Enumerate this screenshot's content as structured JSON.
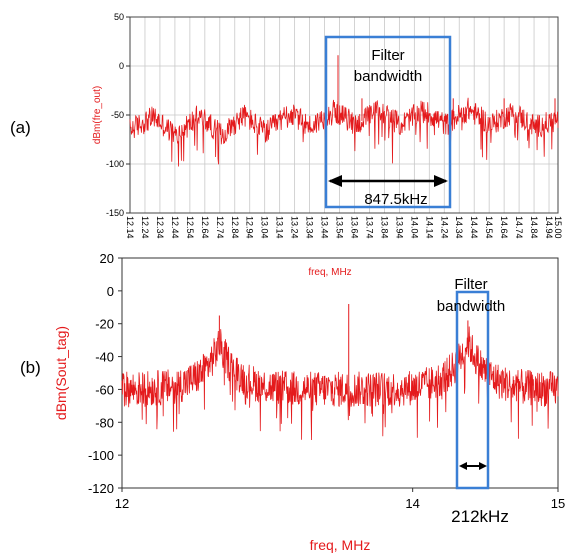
{
  "chart_data": [
    {
      "panel_label": "(a)",
      "type": "line",
      "ylabel": "dBm(fre_out)",
      "xlabel": "",
      "ylim": [
        -150,
        50
      ],
      "yticks": [
        "50",
        "0",
        "-50",
        "-100",
        "-150"
      ],
      "xlim": [
        12.14,
        15.0
      ],
      "xticks": [
        "12.14",
        "12.24",
        "12.34",
        "12.44",
        "12.54",
        "12.64",
        "12.74",
        "12.84",
        "12.94",
        "13.04",
        "13.14",
        "13.24",
        "13.34",
        "13.44",
        "13.54",
        "13.64",
        "13.74",
        "13.84",
        "13.94",
        "14.04",
        "14.14",
        "14.24",
        "14.34",
        "14.44",
        "14.54",
        "14.64",
        "14.74",
        "14.84",
        "14.94",
        "15.00"
      ],
      "grid": true,
      "series": [
        {
          "color": "#e41a1c",
          "description_points": [
            [
              12.14,
              -65
            ],
            [
              12.3,
              -52
            ],
            [
              12.45,
              -72
            ],
            [
              12.6,
              -50
            ],
            [
              12.75,
              -70
            ],
            [
              12.9,
              -50
            ],
            [
              13.05,
              -68
            ],
            [
              13.2,
              -48
            ],
            [
              13.35,
              -62
            ],
            [
              13.5,
              -45
            ],
            [
              13.65,
              -60
            ],
            [
              13.8,
              -45
            ],
            [
              13.95,
              -60
            ],
            [
              14.1,
              -45
            ],
            [
              14.25,
              -60
            ],
            [
              14.4,
              -44
            ],
            [
              14.55,
              -60
            ],
            [
              14.7,
              -47
            ],
            [
              14.85,
              -62
            ],
            [
              15.0,
              -55
            ]
          ],
          "peaks": [
            [
              13.53,
              11
            ],
            [
              13.69,
              -33
            ],
            [
              14.3,
              -33
            ],
            [
              14.64,
              -33
            ],
            [
              14.98,
              -33
            ]
          ]
        }
      ],
      "annotations": {
        "box_label_line1": "Filter",
        "box_label_line2": "bandwidth",
        "span_label": "847.5kHz"
      }
    },
    {
      "panel_label": "(b)",
      "type": "line",
      "ylabel": "dBm(Sout_tag)",
      "xlabel": "freq, MHz",
      "ylim": [
        -120,
        20
      ],
      "yticks": [
        "20",
        "0",
        "-20",
        "-40",
        "-60",
        "-80",
        "-100",
        "-120"
      ],
      "xlim": [
        12,
        15
      ],
      "xticks": [
        "12",
        "14",
        "15"
      ],
      "grid": false,
      "series": [
        {
          "color": "#e41a1c",
          "floor": [
            -80,
            -35
          ],
          "peaks": [
            [
              12.67,
              -15
            ],
            [
              13.56,
              -8
            ],
            [
              14.38,
              -18
            ]
          ]
        }
      ],
      "annotations": {
        "marker_label": "freq, MHz",
        "box_label_line1": "Filter",
        "box_label_line2": "bandwidth",
        "span_label": "212kHz"
      }
    }
  ]
}
